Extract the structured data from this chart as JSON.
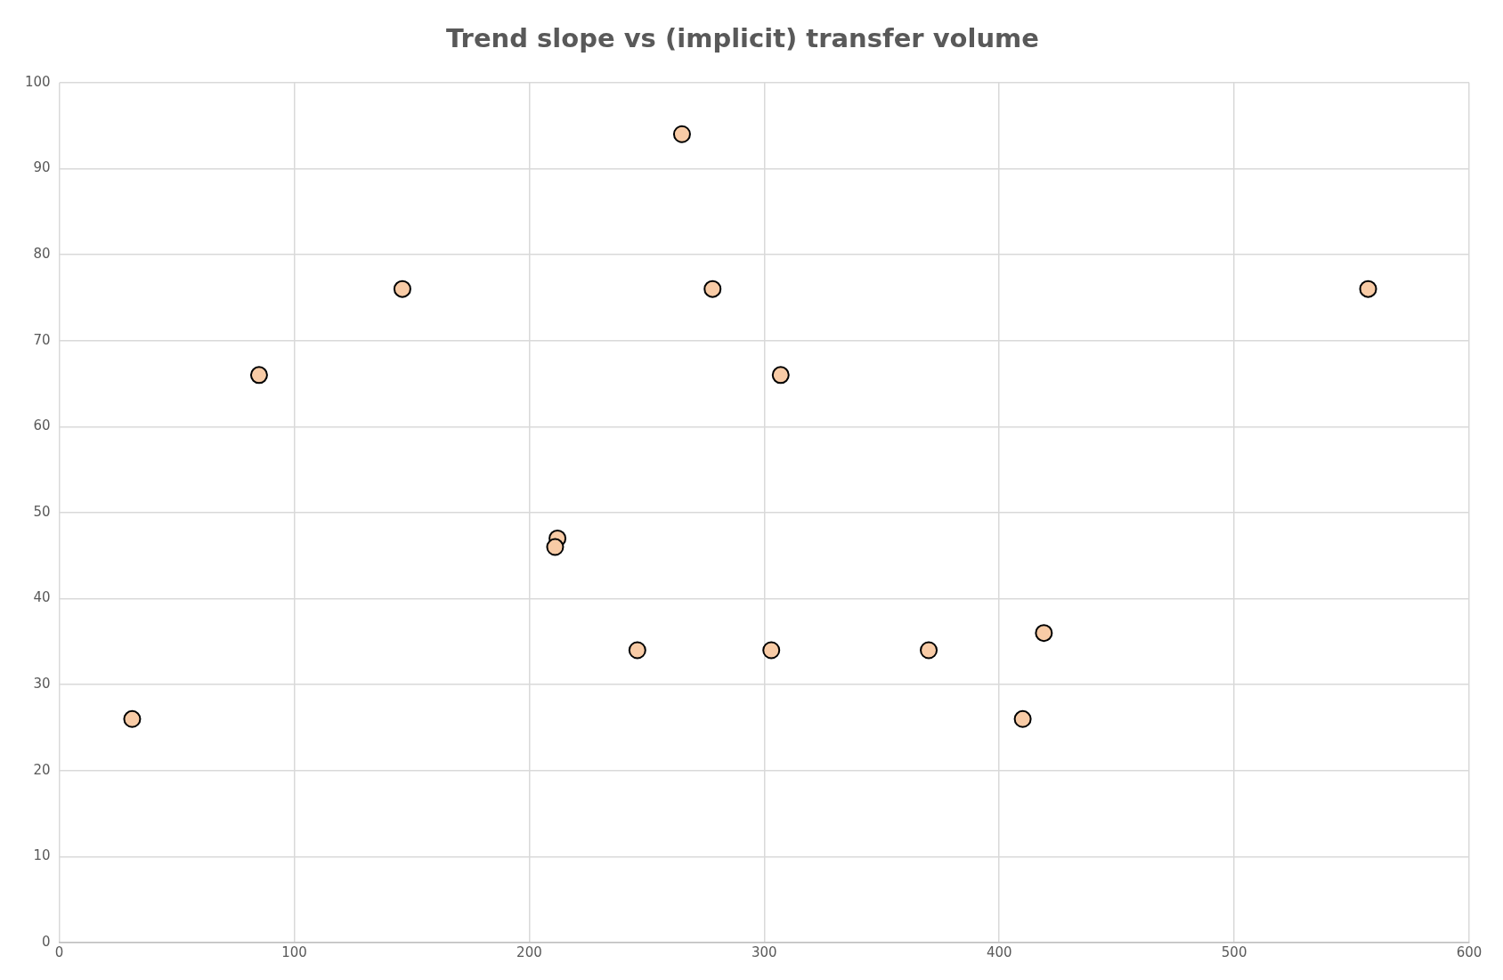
{
  "chart_data": {
    "type": "scatter",
    "title": "Trend slope vs (implicit) transfer volume",
    "x": [
      31,
      85,
      146,
      212,
      211,
      246,
      265,
      278,
      303,
      307,
      370,
      410,
      419,
      557
    ],
    "values": [
      26,
      66,
      76,
      47,
      46,
      34,
      94,
      76,
      34,
      66,
      34,
      26,
      36,
      76
    ],
    "color": "#f8cba6",
    "marker": "circle",
    "grid": true,
    "legend": false,
    "xlim": [
      0,
      600
    ],
    "xticks": [
      0,
      100,
      200,
      300,
      400,
      500,
      600
    ],
    "ylim": [
      0,
      100
    ],
    "yticks": [
      0,
      10,
      20,
      30,
      40,
      50,
      60,
      70,
      80,
      90,
      100
    ]
  }
}
